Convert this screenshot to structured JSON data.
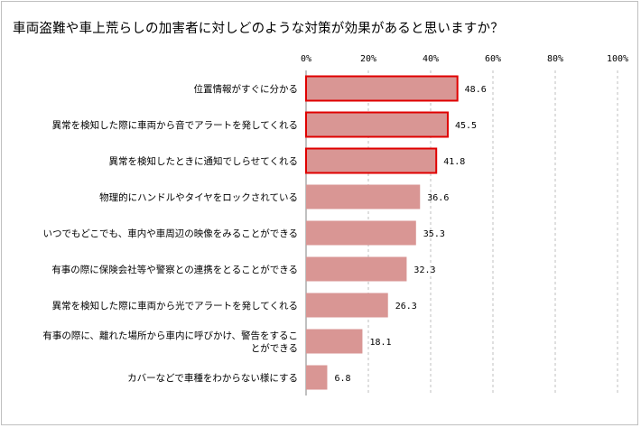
{
  "chart_data": {
    "type": "bar",
    "orientation": "horizontal",
    "title": "車両盗難や車上荒らしの加害者に対しどのような対策が効果があると思いますか？",
    "xlim": [
      0,
      100
    ],
    "x_ticks": [
      "0%",
      "20%",
      "40%",
      "60%",
      "80%",
      "100%"
    ],
    "categories": [
      [
        "位置情報がすぐに分かる"
      ],
      [
        "異常を検知した際に車両から音でアラートを発してくれる"
      ],
      [
        "異常を検知したときに通知でしらせてくれる"
      ],
      [
        "物理的にハンドルやタイヤをロックされている"
      ],
      [
        "いつでもどこでも、車内や車周辺の映像をみることができる"
      ],
      [
        "有事の際に保険会社等や警察との連携をとることができる"
      ],
      [
        "異常を検知した際に車両から光でアラートを発してくれる"
      ],
      [
        "有事の際に、離れた場所から車内に呼びかけ、警告をするこ",
        "とができる"
      ],
      [
        "カバーなどで車種をわからない様にする"
      ]
    ],
    "values": [
      48.6,
      45.5,
      41.8,
      36.6,
      35.3,
      32.3,
      26.3,
      18.1,
      6.8
    ],
    "value_labels": [
      "48.6",
      "45.5",
      "41.8",
      "36.6",
      "35.3",
      "32.3",
      "26.3",
      "18.1",
      "6.8"
    ],
    "highlighted_top": 3,
    "grid": "vertical dashed",
    "colors": {
      "bar": "#d99694",
      "highlight_border": "#e00000",
      "grid": "#bfbfbf",
      "axis": "#808080"
    }
  }
}
